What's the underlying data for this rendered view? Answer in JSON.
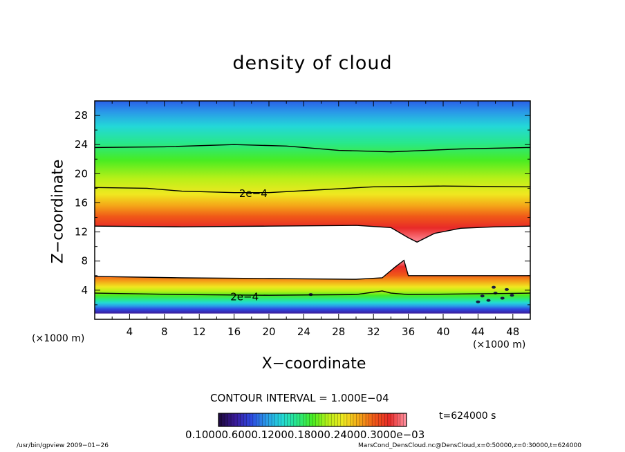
{
  "chart_data": {
    "type": "heatmap",
    "title": "density of cloud",
    "xlabel": "X−coordinate",
    "ylabel": "Z−coordinate",
    "x_unit_left": "(×1000 m)",
    "x_unit_right": "(×1000 m)",
    "xlim": [
      0,
      50
    ],
    "ylim": [
      0,
      30
    ],
    "x_ticks": [
      4,
      8,
      12,
      16,
      20,
      24,
      28,
      32,
      36,
      40,
      44,
      48
    ],
    "y_ticks": [
      4,
      8,
      12,
      16,
      20,
      24,
      28
    ],
    "contour_labels": [
      {
        "text": "2e−4",
        "x": 18.2,
        "z": 17.3
      },
      {
        "text": "2e−4",
        "x": 17.2,
        "z": 3.1
      }
    ],
    "upper_layer_contour": [
      [
        0,
        18.1
      ],
      [
        6,
        18.0
      ],
      [
        10,
        17.6
      ],
      [
        16,
        17.4
      ],
      [
        20,
        17.4
      ],
      [
        26,
        17.8
      ],
      [
        32,
        18.2
      ],
      [
        40,
        18.3
      ],
      [
        50,
        18.2
      ]
    ],
    "top_contour": [
      [
        0,
        23.6
      ],
      [
        8,
        23.7
      ],
      [
        16,
        24.0
      ],
      [
        22,
        23.8
      ],
      [
        28,
        23.2
      ],
      [
        34,
        23.0
      ],
      [
        42,
        23.4
      ],
      [
        50,
        23.6
      ]
    ],
    "cloud_base_contour": [
      [
        0,
        12.8
      ],
      [
        10,
        12.7
      ],
      [
        20,
        12.8
      ],
      [
        30,
        12.9
      ],
      [
        34,
        12.6
      ],
      [
        36,
        11.2
      ],
      [
        37,
        10.6
      ],
      [
        39,
        11.8
      ],
      [
        42,
        12.5
      ],
      [
        46,
        12.7
      ],
      [
        50,
        12.8
      ]
    ],
    "lower_top_contour": [
      [
        0,
        5.9
      ],
      [
        10,
        5.7
      ],
      [
        20,
        5.6
      ],
      [
        30,
        5.5
      ],
      [
        33,
        5.7
      ],
      [
        34.5,
        7.2
      ],
      [
        35.5,
        8.1
      ],
      [
        36,
        6.0
      ],
      [
        42,
        6.0
      ],
      [
        50,
        6.0
      ]
    ],
    "lower_mid_contour": [
      [
        0,
        3.6
      ],
      [
        10,
        3.4
      ],
      [
        20,
        3.3
      ],
      [
        30,
        3.4
      ],
      [
        33,
        3.9
      ],
      [
        34,
        3.6
      ],
      [
        36,
        3.4
      ],
      [
        44,
        3.5
      ],
      [
        50,
        3.6
      ]
    ],
    "contour_interval": "CONTOUR INTERVAL = 1.000E−04",
    "time_label": "t=624000 s",
    "colorbar_labels": "0.10000.6000.12000.18000.24000.3000e−03",
    "colorbar_colors": [
      "#1e0a40",
      "#3a1a9a",
      "#2d48e0",
      "#2a9ae8",
      "#23d8d8",
      "#28e88a",
      "#48ec22",
      "#b8f018",
      "#f0e820",
      "#f4a818",
      "#f05818",
      "#e82a28",
      "#ff8c9a"
    ],
    "colormap": "rainbow"
  },
  "footer": {
    "left": "/usr/bin/gpview   2009−01−26",
    "right": "MarsCond_DensCloud.nc@DensCloud,x=0:50000,z=0:30000,t=624000"
  }
}
